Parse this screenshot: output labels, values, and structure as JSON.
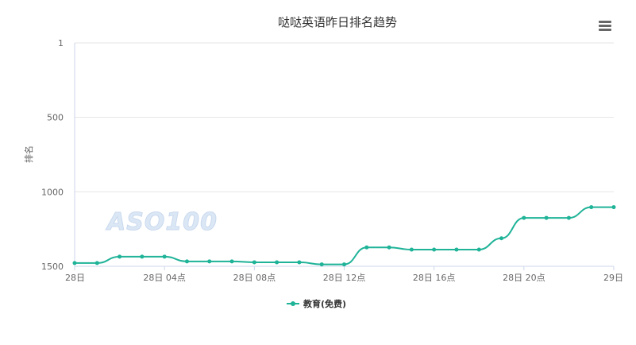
{
  "colors": {
    "series": "#1fb398",
    "axis": "#ccd6eb",
    "grid": "#e6e6e6",
    "text": "#666666",
    "title": "#333333"
  },
  "chart": {
    "title": "哒哒英语昨日排名趋势",
    "menu_icon": "hamburger-menu-icon",
    "watermark": "ASO100",
    "legend_label": "教育(免费)"
  },
  "chart_data": {
    "type": "line",
    "title": "哒哒英语昨日排名趋势",
    "xlabel": "",
    "ylabel": "排名",
    "y_reversed": true,
    "ylim": [
      1,
      1500
    ],
    "yticks": [
      "1",
      "500",
      "1000",
      "1500"
    ],
    "xticks": [
      "28日",
      "28日 04点",
      "28日 08点",
      "28日 12点",
      "28日 16点",
      "28日 20点",
      "29日"
    ],
    "grid": true,
    "legend_position": "bottom-center",
    "series": [
      {
        "name": "教育(免费)",
        "x": [
          "00:00",
          "01:00",
          "02:00",
          "03:00",
          "04:00",
          "05:00",
          "06:00",
          "07:00",
          "08:00",
          "09:00",
          "10:00",
          "11:00",
          "12:00",
          "13:00",
          "14:00",
          "15:00",
          "16:00",
          "17:00",
          "18:00",
          "19:00",
          "20:00",
          "21:00",
          "22:00",
          "23:00",
          "24:00"
        ],
        "values": [
          1478,
          1478,
          1435,
          1435,
          1435,
          1467,
          1467,
          1467,
          1473,
          1473,
          1473,
          1487,
          1487,
          1373,
          1373,
          1388,
          1388,
          1388,
          1388,
          1312,
          1175,
          1175,
          1175,
          1103,
          1103
        ]
      }
    ]
  }
}
